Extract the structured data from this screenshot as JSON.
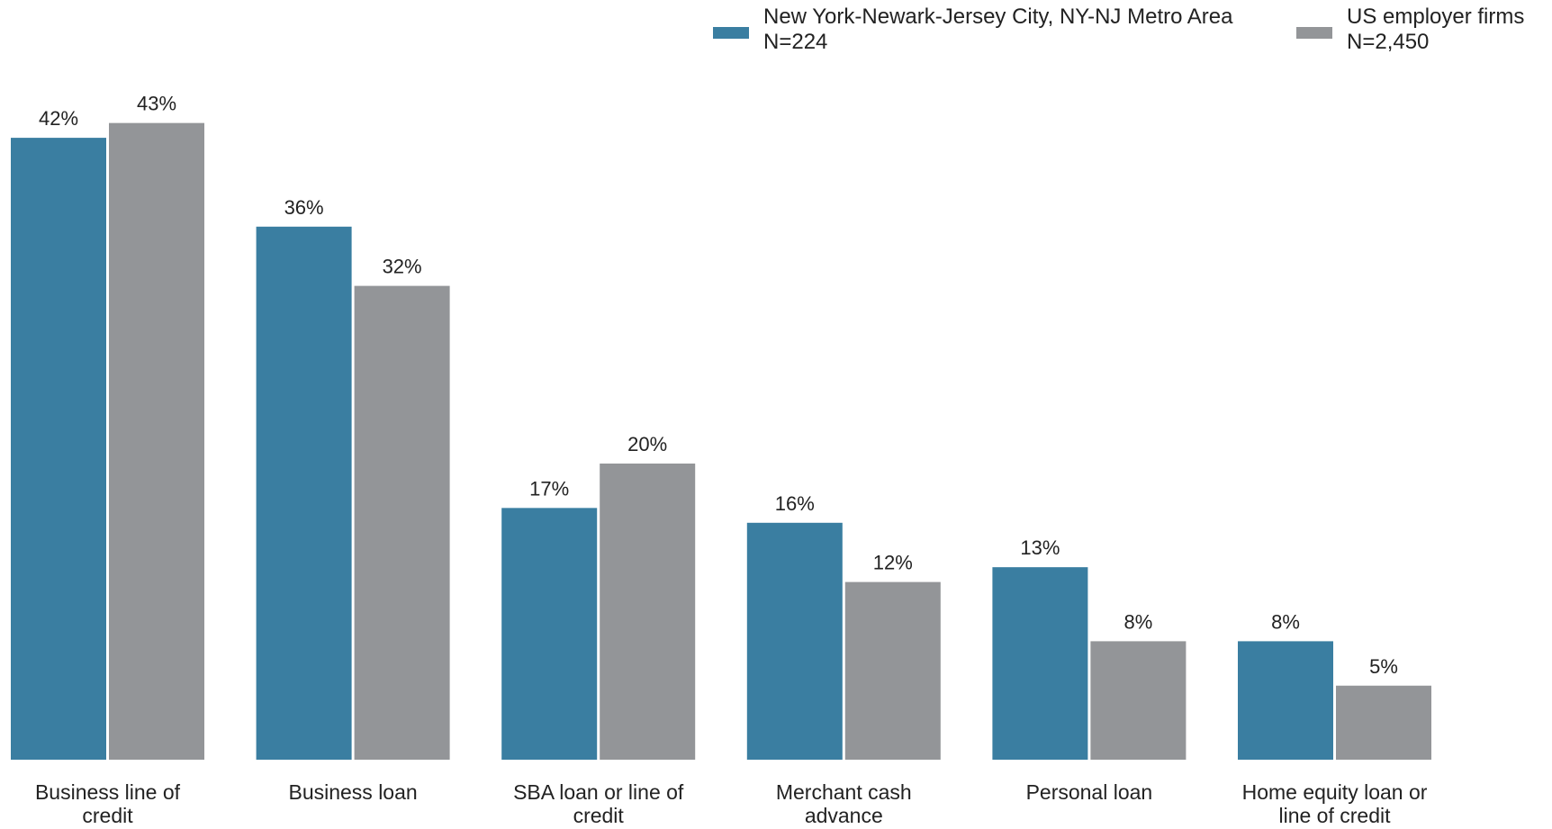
{
  "chart_data": {
    "type": "bar",
    "title": "",
    "xlabel": "",
    "ylabel": "",
    "ylim": [
      0,
      46
    ],
    "grid": false,
    "legend_position": "top-right",
    "categories": [
      "Business line of credit",
      "Business loan",
      "SBA loan or line of credit",
      "Merchant cash advance",
      "Personal loan",
      "Home equity loan or line of credit"
    ],
    "category_label_lines": [
      [
        "Business line of",
        "credit"
      ],
      [
        "Business loan"
      ],
      [
        "SBA loan or line of",
        "credit"
      ],
      [
        "Merchant cash",
        "advance"
      ],
      [
        "Personal loan"
      ],
      [
        "Home equity loan or",
        "line of credit"
      ]
    ],
    "series": [
      {
        "name": "New York-Newark-Jersey City, NY-NJ Metro Area",
        "sample": "N=224",
        "color": "#3a7ea1",
        "values": [
          42,
          36,
          17,
          16,
          13,
          8
        ],
        "labels": [
          "42%",
          "36%",
          "17%",
          "16%",
          "13%",
          "8%"
        ]
      },
      {
        "name": "US employer firms",
        "sample": "N=2,450",
        "color": "#939598",
        "values": [
          43,
          32,
          20,
          12,
          8,
          5
        ],
        "labels": [
          "43%",
          "32%",
          "20%",
          "12%",
          "8%",
          "5%"
        ]
      }
    ]
  }
}
